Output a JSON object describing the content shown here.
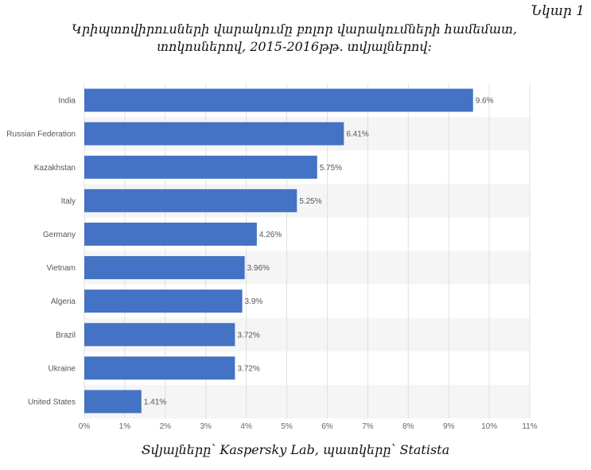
{
  "figure_label": "Նկար 1",
  "title_line1": "Կրիպտովիրուսների վարակումը բոլոր վարակումների համեմատ,",
  "title_line2": "տոկոսներով, 2015-2016թթ. տվյալներով:",
  "source": "Տվյալները՝ Kaspersky Lab, պատկերը՝ Statista",
  "colors": {
    "bar": "#4472c4",
    "stripe": "#f5f5f5",
    "grid": "#e0e0e0"
  },
  "chart_data": {
    "type": "bar",
    "orientation": "horizontal",
    "categories": [
      "India",
      "Russian Federation",
      "Kazakhstan",
      "Italy",
      "Germany",
      "Vietnam",
      "Algeria",
      "Brazil",
      "Ukraine",
      "United States"
    ],
    "values": [
      9.6,
      6.41,
      5.75,
      5.25,
      4.26,
      3.96,
      3.9,
      3.72,
      3.72,
      1.41
    ],
    "value_labels": [
      "9.6%",
      "6.41%",
      "5.75%",
      "5.25%",
      "4.26%",
      "3.96%",
      "3.9%",
      "3.72%",
      "3.72%",
      "1.41%"
    ],
    "xlim": [
      0,
      11
    ],
    "xticks": [
      0,
      1,
      2,
      3,
      4,
      5,
      6,
      7,
      8,
      9,
      10,
      11
    ],
    "xtick_labels": [
      "0%",
      "1%",
      "2%",
      "3%",
      "4%",
      "5%",
      "6%",
      "7%",
      "8%",
      "9%",
      "10%",
      "11%"
    ],
    "grid": true
  }
}
